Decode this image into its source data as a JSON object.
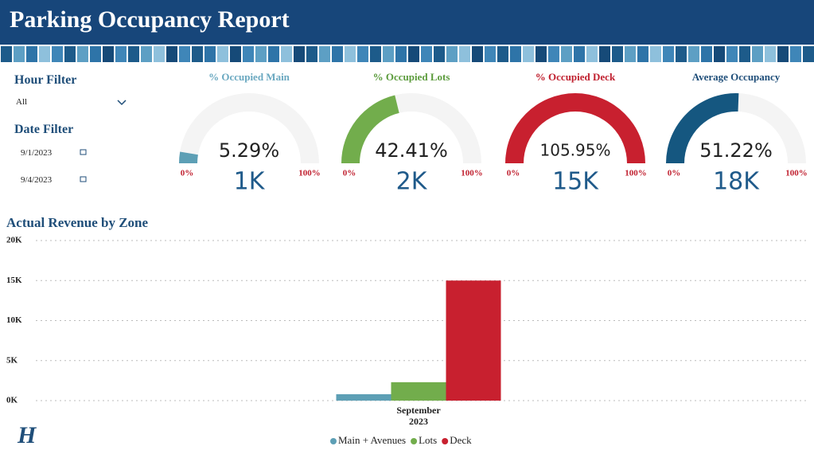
{
  "header": {
    "title": "Parking Occupancy Report"
  },
  "filters": {
    "hour_title": "Hour Filter",
    "hour_value": "All",
    "date_title": "Date Filter",
    "date_start": "9/1/2023",
    "date_end": "9/4/2023"
  },
  "logo": "H",
  "chart_data": [
    {
      "type": "gauge",
      "title": "% Occupied Main",
      "value": 5.29,
      "value_label": "5.29%",
      "count": "1K",
      "min": {
        "value": 0,
        "label": "0%"
      },
      "max": {
        "value": 100,
        "label": "100%"
      },
      "color": "#5d9fb5",
      "title_color": "#6aa8c0"
    },
    {
      "type": "gauge",
      "title": "% Occupied Lots",
      "value": 42.41,
      "value_label": "42.41%",
      "count": "2K",
      "min": {
        "value": 0,
        "label": "0%"
      },
      "max": {
        "value": 100,
        "label": "100%"
      },
      "color": "#72ad4c",
      "title_color": "#5b9b3c"
    },
    {
      "type": "gauge",
      "title": "% Occupied Deck",
      "value": 105.95,
      "value_label": "105.95%",
      "count": "15K",
      "min": {
        "value": 0,
        "label": "0%"
      },
      "max": {
        "value": 100,
        "label": "100%"
      },
      "color": "#c8202f",
      "title_color": "#c0202f"
    },
    {
      "type": "gauge",
      "title": "Average Occupancy",
      "value": 51.22,
      "value_label": "51.22%",
      "count": "18K",
      "min": {
        "value": 0,
        "label": "0%"
      },
      "max": {
        "value": 100,
        "label": "100%"
      },
      "color": "#155780",
      "title_color": "#1f4e79"
    },
    {
      "type": "bar",
      "title": "Actual Revenue by Zone",
      "categories": [
        "September 2023"
      ],
      "series": [
        {
          "name": "Main + Avenues",
          "color": "#5d9fb5",
          "values": [
            800
          ]
        },
        {
          "name": "Lots",
          "color": "#72ad4c",
          "values": [
            2300
          ]
        },
        {
          "name": "Deck",
          "color": "#c8202f",
          "values": [
            15000
          ]
        }
      ],
      "ylim": [
        0,
        20000
      ],
      "yticks": [
        {
          "value": 0,
          "label": "0K"
        },
        {
          "value": 5000,
          "label": "5K"
        },
        {
          "value": 10000,
          "label": "10K"
        },
        {
          "value": 15000,
          "label": "15K"
        },
        {
          "value": 20000,
          "label": "20K"
        }
      ],
      "grid": true,
      "legend": "bottom"
    }
  ]
}
